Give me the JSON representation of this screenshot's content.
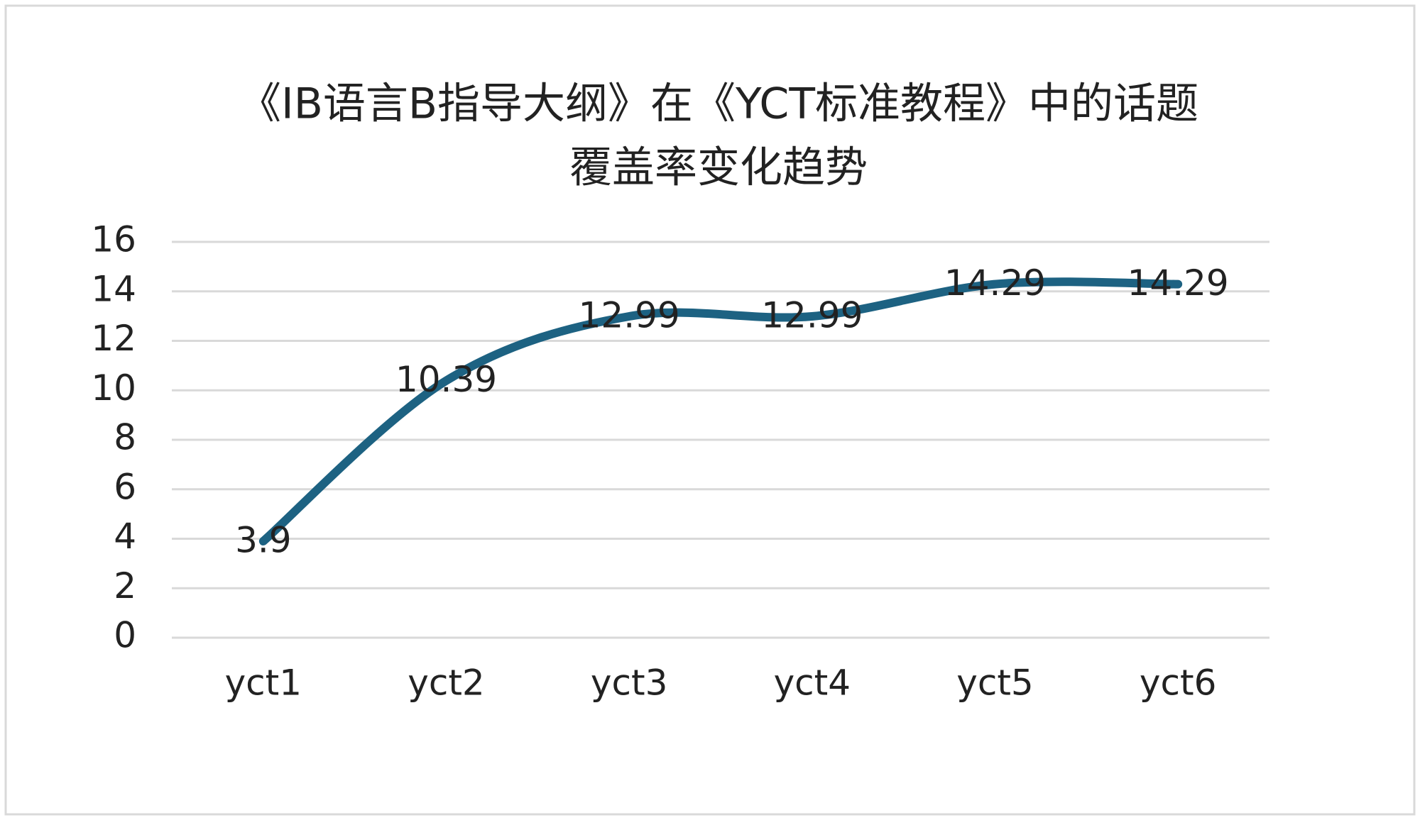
{
  "chart_data": {
    "type": "line",
    "title": [
      "《IB语言B指导大纲》在《YCT标准教程》中的话题",
      "覆盖率变化趋势"
    ],
    "categories": [
      "yct1",
      "yct2",
      "yct3",
      "yct4",
      "yct5",
      "yct6"
    ],
    "series": [
      {
        "name": "覆盖率",
        "color": "#1d6282",
        "values": [
          3.9,
          10.39,
          12.99,
          12.99,
          14.29,
          14.29
        ]
      }
    ],
    "ylim": [
      0,
      16
    ],
    "yticks": [
      0,
      2,
      4,
      6,
      8,
      10,
      12,
      14,
      16
    ],
    "grid": true,
    "smooth": true,
    "data_labels": true
  }
}
